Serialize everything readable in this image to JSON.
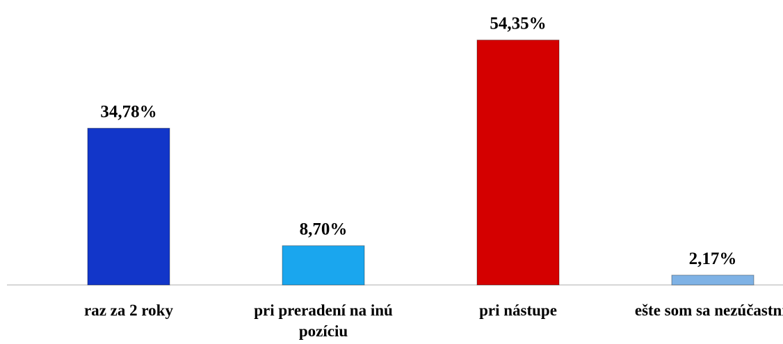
{
  "chart_data": {
    "type": "bar",
    "categories": [
      "raz za 2 roky",
      "pri preradení na inú pozíciu",
      "pri nástupe",
      "ešte som sa nezúčastnil"
    ],
    "values": [
      34.78,
      8.7,
      54.35,
      2.17
    ],
    "value_labels": [
      "34,78%",
      "8,70%",
      "54,35%",
      "2,17%"
    ],
    "colors": [
      "#1236c9",
      "#1aa6ee",
      "#d40000",
      "#7fb2e5"
    ],
    "ylim": [
      0,
      60
    ]
  }
}
